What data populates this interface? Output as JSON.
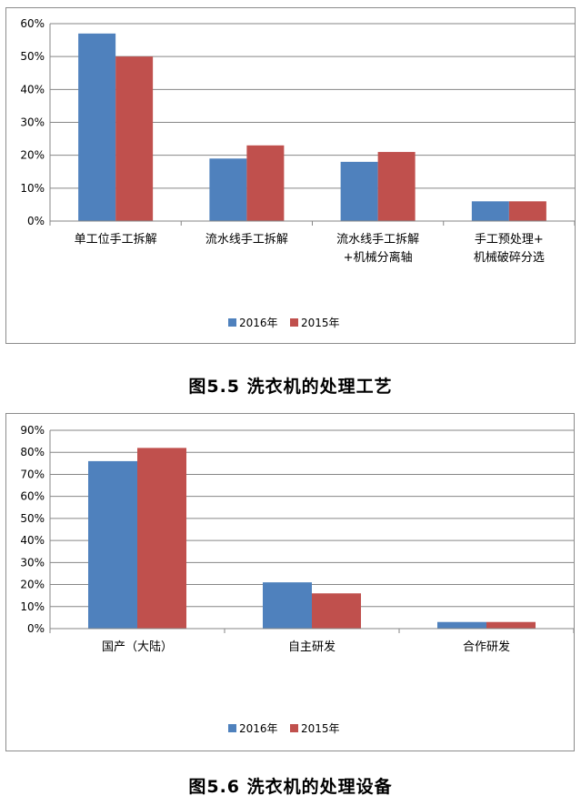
{
  "chart_data": [
    {
      "type": "bar",
      "categories": [
        "单工位手工拆解",
        "流水线手工拆解\n+机械分离轴",
        "流水线手工拆解",
        "手工预处理+\n机械破碎分选"
      ],
      "series": [
        {
          "name": "2016年",
          "values": [
            57,
            19,
            18,
            6
          ],
          "color": "#4f81bd"
        },
        {
          "name": "2015年",
          "values": [
            50,
            23,
            21,
            6
          ],
          "color": "#c0504d"
        }
      ],
      "ylim": [
        0,
        60
      ],
      "ytick_step": 10,
      "ytick_suffix": "%",
      "grid": true,
      "legend_position": "bottom"
    },
    {
      "type": "bar",
      "categories": [
        "国产（大陆）",
        "自主研发",
        "合作研发"
      ],
      "series": [
        {
          "name": "2016年",
          "values": [
            76,
            21,
            3
          ],
          "color": "#4f81bd"
        },
        {
          "name": "2015年",
          "values": [
            82,
            16,
            3
          ],
          "color": "#c0504d"
        }
      ],
      "ylim": [
        0,
        90
      ],
      "ytick_step": 10,
      "ytick_suffix": "%",
      "grid": true,
      "legend_position": "bottom"
    }
  ],
  "captions": [
    "图5.5  洗衣机的处理工艺",
    "图5.6  洗衣机的处理设备"
  ]
}
